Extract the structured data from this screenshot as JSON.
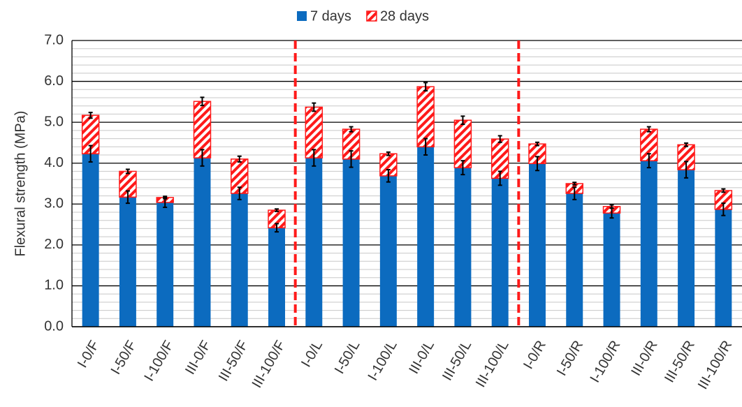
{
  "chart_data": {
    "type": "stacked-bar",
    "y_label": "Flexural strength  (MPa)",
    "categories": [
      "I-0/F",
      "I-50/F",
      "I-100/F",
      "III-0/F",
      "III-50/F",
      "III-100/F",
      "I-0/L",
      "I-50/L",
      "I-100/L",
      "III-0/L",
      "III-50/L",
      "III-100/L",
      "I-0/R",
      "I-50/R",
      "I-100/R",
      "III-0/R",
      "III-50/R",
      "III-100/R"
    ],
    "series": [
      {
        "name": "7 days",
        "color": "#0c6bbf",
        "values": [
          4.23,
          3.17,
          3.04,
          4.13,
          3.26,
          2.42,
          4.13,
          4.1,
          3.69,
          4.4,
          3.89,
          3.63,
          3.99,
          3.26,
          2.78,
          4.06,
          3.84,
          2.87
        ],
        "errors": [
          0.2,
          0.15,
          0.12,
          0.2,
          0.15,
          0.1,
          0.2,
          0.2,
          0.15,
          0.2,
          0.17,
          0.17,
          0.17,
          0.15,
          0.12,
          0.17,
          0.2,
          0.15
        ]
      },
      {
        "name": "28 days",
        "color": "#ff1a1a",
        "hatch": true,
        "values": [
          0.94,
          0.63,
          0.12,
          1.38,
          0.84,
          0.43,
          1.24,
          0.73,
          0.54,
          1.47,
          1.16,
          0.96,
          0.48,
          0.24,
          0.16,
          0.77,
          0.61,
          0.46
        ],
        "errors": [
          0.07,
          0.05,
          0.03,
          0.1,
          0.07,
          0.03,
          0.1,
          0.06,
          0.04,
          0.1,
          0.1,
          0.08,
          0.04,
          0.03,
          0.04,
          0.06,
          0.04,
          0.04
        ]
      }
    ],
    "ylim": [
      0,
      7
    ],
    "yticks": [
      {
        "value": 0,
        "label": "0.0"
      },
      {
        "value": 1,
        "label": "1.0"
      },
      {
        "value": 2,
        "label": "2.0"
      },
      {
        "value": 3,
        "label": "3.0"
      },
      {
        "value": 4,
        "label": "4.0"
      },
      {
        "value": 5,
        "label": "5.0"
      },
      {
        "value": 6,
        "label": "6.0"
      },
      {
        "value": 7,
        "label": "7.0"
      }
    ],
    "minor_yticks": [
      0.2,
      0.4,
      0.6,
      0.8,
      1.2,
      1.4,
      1.6,
      1.8,
      2.2,
      2.4,
      2.6,
      2.8,
      3.2,
      3.4,
      3.6,
      3.8,
      4.2,
      4.4,
      4.6,
      4.8,
      5.2,
      5.4,
      5.6,
      5.8,
      6.2,
      6.4,
      6.6,
      6.8
    ],
    "grid": true,
    "group_separators": [
      6,
      12
    ],
    "separator_color": "#ff1a1a",
    "legend": "top"
  }
}
